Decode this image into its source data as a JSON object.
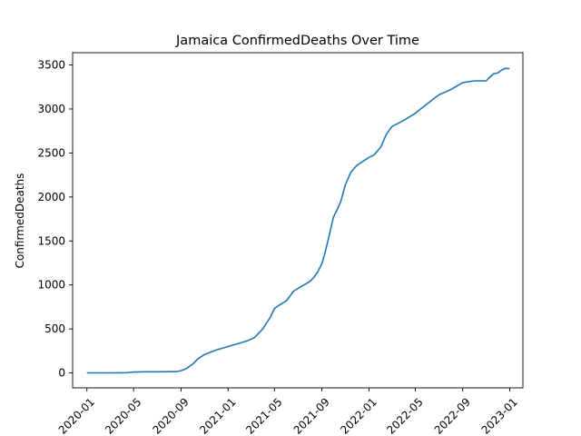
{
  "chart_data": {
    "type": "line",
    "title": "Jamaica  ConfirmedDeaths Over Time",
    "xlabel": "",
    "ylabel": "ConfirmedDeaths",
    "grid": false,
    "legend": "none",
    "line_color": "#1f77b4",
    "xlim": [
      "2019-11-25",
      "2023-02-04"
    ],
    "ylim": [
      -170,
      3640
    ],
    "x_ticks": [
      "2020-01",
      "2020-05",
      "2020-09",
      "2021-01",
      "2021-05",
      "2021-09",
      "2022-01",
      "2022-05",
      "2022-09",
      "2023-01"
    ],
    "y_ticks": [
      0,
      500,
      1000,
      1500,
      2000,
      2500,
      3000,
      3500
    ],
    "series": [
      {
        "x": [
          "2020-01-01",
          "2020-03-10",
          "2020-04-15",
          "2020-05-01",
          "2020-06-01",
          "2020-07-01",
          "2020-08-01",
          "2020-08-20",
          "2020-09-01",
          "2020-09-15",
          "2020-10-01",
          "2020-10-15",
          "2020-11-01",
          "2020-12-01",
          "2021-01-01",
          "2021-02-01",
          "2021-02-20",
          "2021-03-10",
          "2021-04-01",
          "2021-04-20",
          "2021-05-01",
          "2021-05-10",
          "2021-06-01",
          "2021-06-20",
          "2021-07-01",
          "2021-08-01",
          "2021-08-10",
          "2021-08-20",
          "2021-09-01",
          "2021-09-10",
          "2021-09-20",
          "2021-10-01",
          "2021-10-10",
          "2021-10-20",
          "2021-11-01",
          "2021-11-15",
          "2021-12-01",
          "2021-12-15",
          "2022-01-01",
          "2022-01-15",
          "2022-02-01",
          "2022-02-15",
          "2022-03-01",
          "2022-04-01",
          "2022-05-01",
          "2022-06-01",
          "2022-07-01",
          "2022-08-01",
          "2022-09-01",
          "2022-10-01",
          "2022-10-15",
          "2022-11-01",
          "2022-11-10",
          "2022-11-20",
          "2022-12-01",
          "2022-12-10",
          "2022-12-20",
          "2022-12-31"
        ],
        "y": [
          0,
          0,
          2,
          10,
          13,
          13,
          14,
          15,
          25,
          50,
          100,
          160,
          210,
          260,
          300,
          340,
          365,
          400,
          500,
          630,
          730,
          760,
          820,
          930,
          960,
          1040,
          1080,
          1140,
          1240,
          1380,
          1560,
          1770,
          1850,
          1950,
          2140,
          2280,
          2360,
          2400,
          2450,
          2480,
          2570,
          2710,
          2800,
          2870,
          2950,
          3060,
          3160,
          3220,
          3300,
          3320,
          3320,
          3320,
          3360,
          3400,
          3410,
          3440,
          3460,
          3460
        ]
      }
    ]
  }
}
